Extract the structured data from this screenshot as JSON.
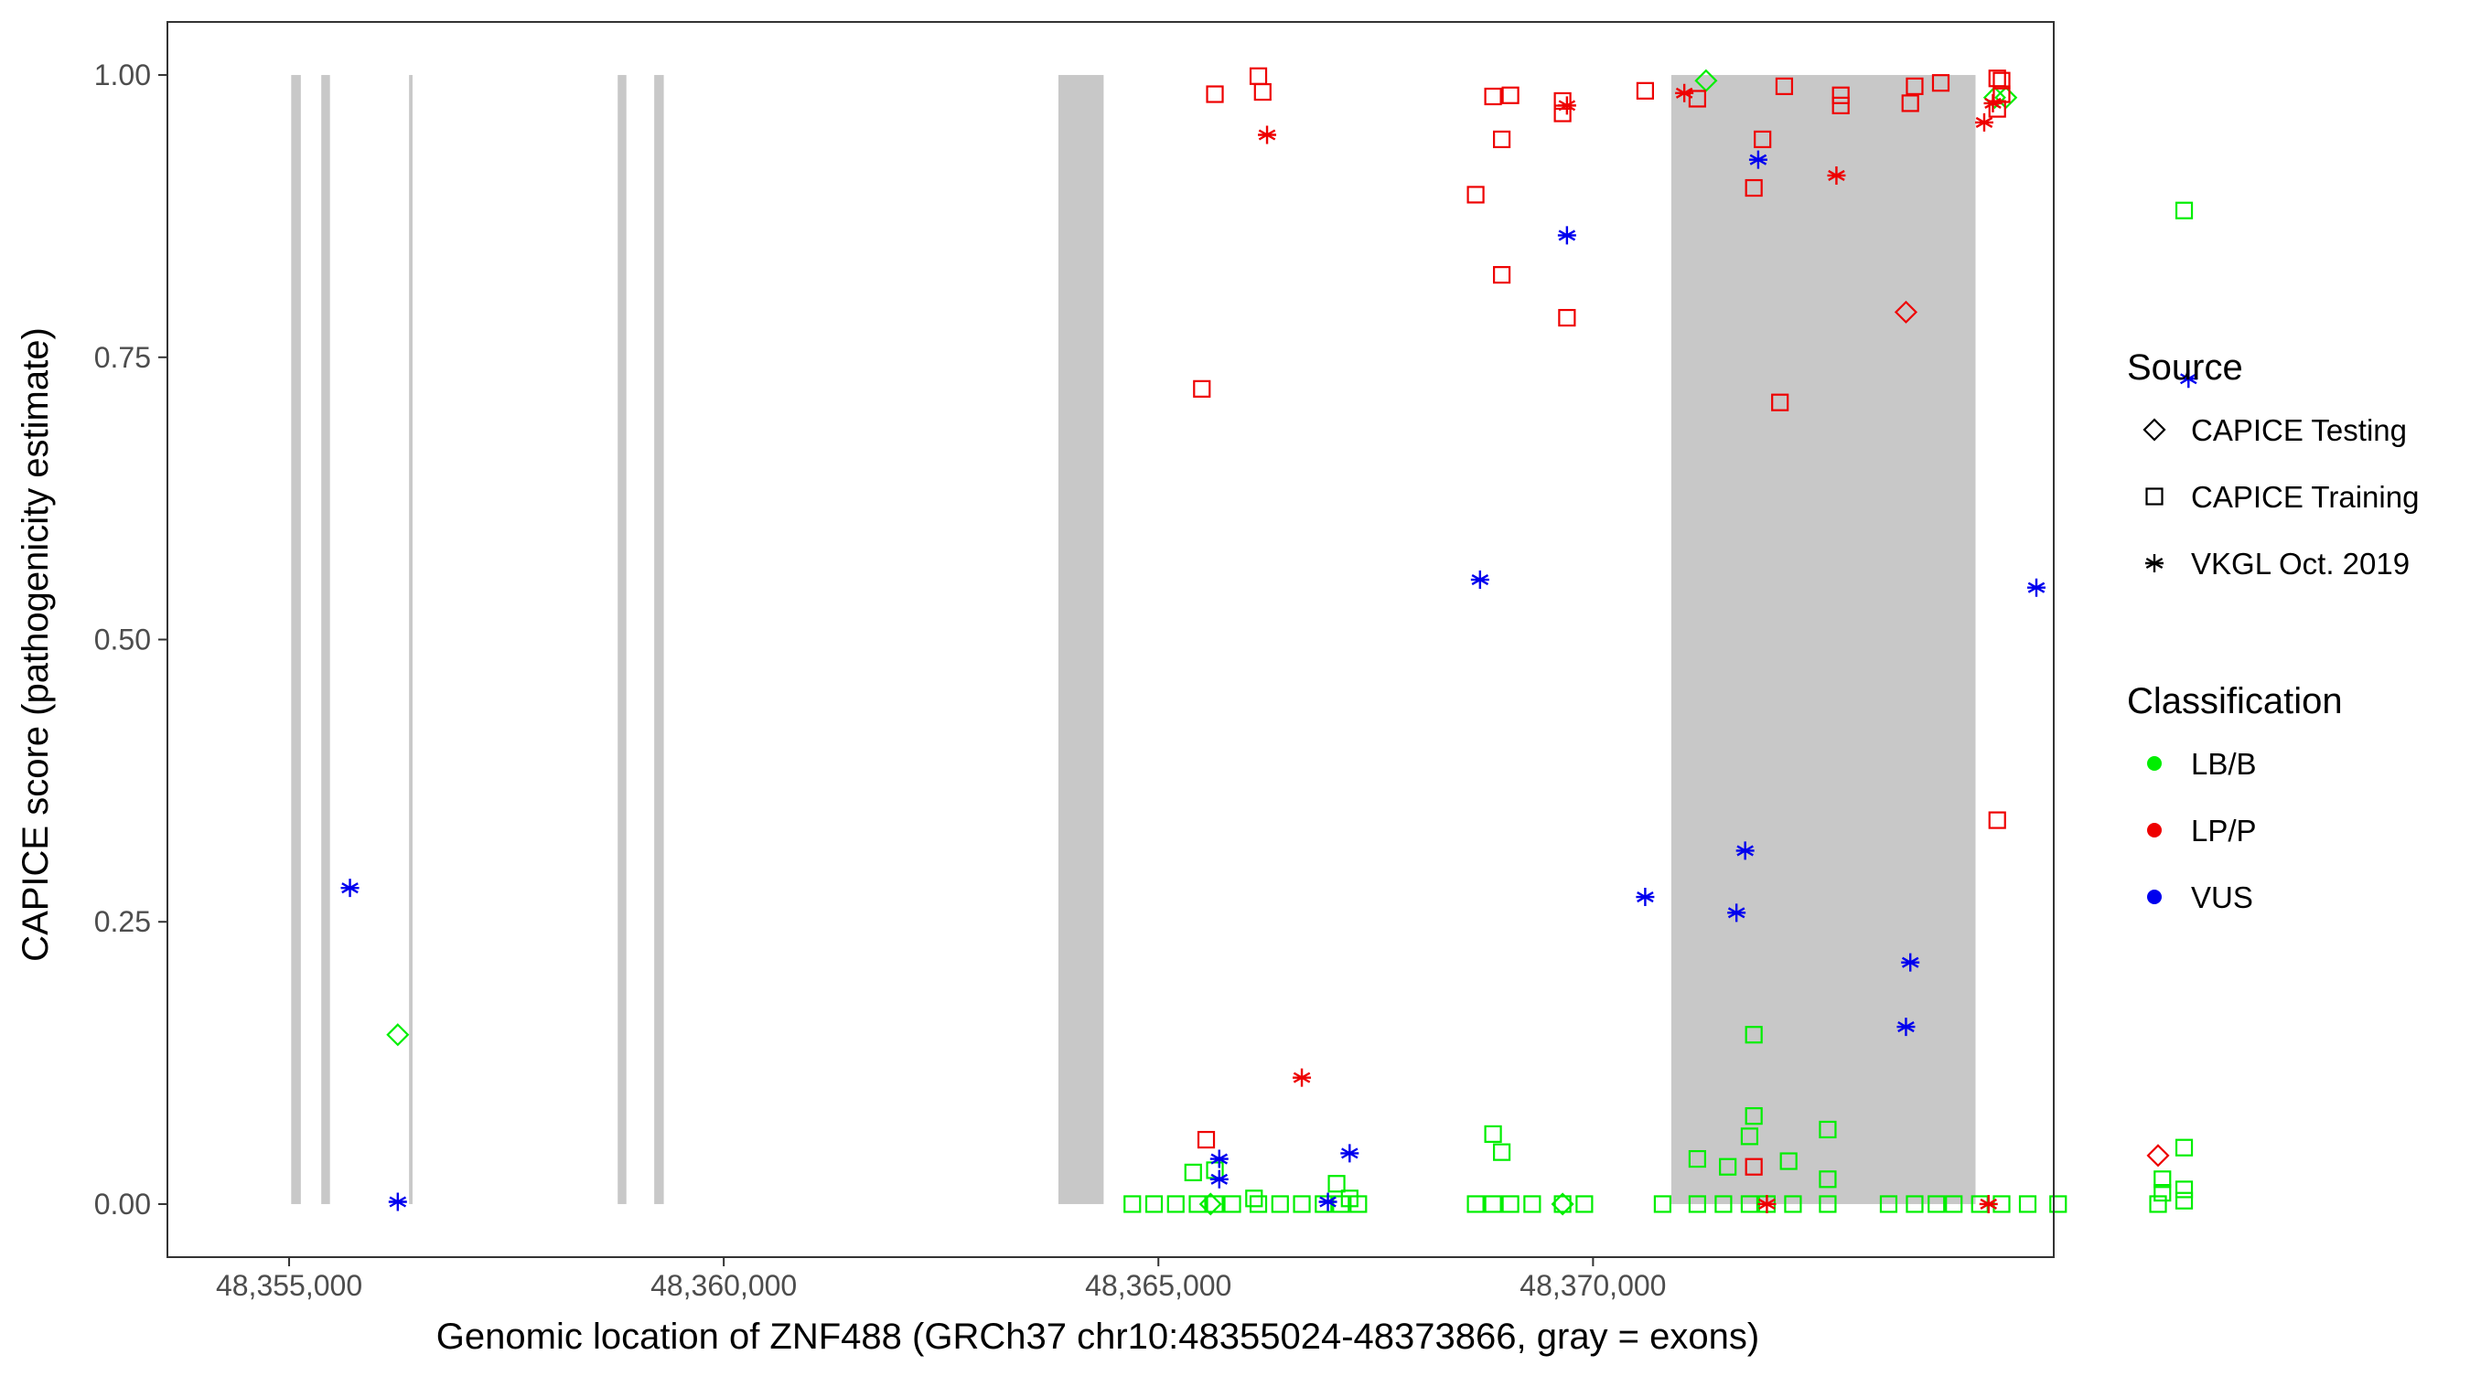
{
  "chart_data": {
    "type": "scatter",
    "xlabel": "Genomic location of ZNF488 (GRCh37 chr10:48355024-48373866, gray = exons)",
    "ylabel": "CAPICE score (pathogenicity estimate)",
    "xlim": [
      48353600,
      48375300
    ],
    "ylim": [
      -0.047,
      1.047
    ],
    "x_ticks": [
      48355000,
      48360000,
      48365000,
      48370000
    ],
    "x_tick_labels": [
      "48,355,000",
      "48,360,000",
      "48,365,000",
      "48,370,000"
    ],
    "y_ticks": [
      0,
      0.25,
      0.5,
      0.75,
      1.0
    ],
    "y_tick_labels": [
      "0.00",
      "0.25",
      "0.50",
      "0.75",
      "1.00"
    ],
    "grid": false,
    "exons": [
      [
        48355024,
        48355135
      ],
      [
        48355370,
        48355470
      ],
      [
        48356380,
        48356420
      ],
      [
        48358780,
        48358880
      ],
      [
        48359200,
        48359310
      ],
      [
        48363850,
        48364370
      ],
      [
        48370900,
        48374400
      ]
    ],
    "exon_color": "#C8C8C8",
    "legend": {
      "position": "right",
      "source_title": "Source",
      "source_items": [
        {
          "label": "CAPICE Testing",
          "shape": "diamond"
        },
        {
          "label": "CAPICE Training",
          "shape": "square"
        },
        {
          "label": "VKGL Oct. 2019",
          "shape": "asterisk"
        }
      ],
      "class_title": "Classification",
      "class_items": [
        {
          "label": "LB/B",
          "color": "#00EE00"
        },
        {
          "label": "LP/P",
          "color": "#EE0000"
        },
        {
          "label": "VUS",
          "color": "#0000EE"
        }
      ]
    },
    "series": [
      {
        "source": "CAPICE Testing",
        "class": "LB/B",
        "points": [
          [
            48356250,
            0.15
          ],
          [
            48371300,
            0.995
          ],
          [
            48374750,
            0.98
          ],
          [
            48369650,
            0.0
          ],
          [
            48374620,
            0.98
          ],
          [
            48365600,
            0.0
          ]
        ]
      },
      {
        "source": "CAPICE Testing",
        "class": "LP/P",
        "points": [
          [
            48373600,
            0.79
          ],
          [
            48376500,
            0.043
          ]
        ]
      },
      {
        "source": "CAPICE Training",
        "class": "LP/P",
        "points": [
          [
            48366150,
            0.999
          ],
          [
            48366200,
            0.985
          ],
          [
            48365650,
            0.983
          ],
          [
            48368850,
            0.981
          ],
          [
            48369050,
            0.982
          ],
          [
            48369650,
            0.977
          ],
          [
            48369650,
            0.966
          ],
          [
            48370600,
            0.986
          ],
          [
            48371200,
            0.979
          ],
          [
            48372200,
            0.99
          ],
          [
            48372850,
            0.982
          ],
          [
            48372850,
            0.973
          ],
          [
            48373650,
            0.975
          ],
          [
            48373700,
            0.99
          ],
          [
            48374000,
            0.993
          ],
          [
            48374650,
            0.997
          ],
          [
            48374700,
            0.995
          ],
          [
            48374700,
            0.983
          ],
          [
            48374650,
            0.97
          ],
          [
            48368950,
            0.943
          ],
          [
            48371950,
            0.943
          ],
          [
            48368650,
            0.894
          ],
          [
            48371850,
            0.9
          ],
          [
            48368950,
            0.823
          ],
          [
            48369700,
            0.785
          ],
          [
            48365500,
            0.722
          ],
          [
            48372150,
            0.71
          ],
          [
            48374650,
            0.34
          ],
          [
            48365550,
            0.057
          ],
          [
            48371850,
            0.033
          ]
        ]
      },
      {
        "source": "CAPICE Training",
        "class": "LB/B",
        "points": [
          [
            48376800,
            0.88
          ],
          [
            48371850,
            0.15
          ],
          [
            48371850,
            0.078
          ],
          [
            48372700,
            0.066
          ],
          [
            48368850,
            0.062
          ],
          [
            48371800,
            0.06
          ],
          [
            48368950,
            0.046
          ],
          [
            48376800,
            0.05
          ],
          [
            48371200,
            0.04
          ],
          [
            48372250,
            0.038
          ],
          [
            48371550,
            0.033
          ],
          [
            48365400,
            0.028
          ],
          [
            48367050,
            0.018
          ],
          [
            48365650,
            0.03
          ],
          [
            48376550,
            0.022
          ],
          [
            48372700,
            0.022
          ],
          [
            48376800,
            0.013
          ],
          [
            48376550,
            0.01
          ],
          [
            48367200,
            0.005
          ],
          [
            48366100,
            0.005
          ],
          [
            48364700,
            0.0
          ],
          [
            48364950,
            0.0
          ],
          [
            48365200,
            0.0
          ],
          [
            48365450,
            0.0
          ],
          [
            48365650,
            0.0
          ],
          [
            48365850,
            0.0
          ],
          [
            48366150,
            0.0
          ],
          [
            48366400,
            0.0
          ],
          [
            48366650,
            0.0
          ],
          [
            48366900,
            0.0
          ],
          [
            48367100,
            0.0
          ],
          [
            48367300,
            0.0
          ],
          [
            48368650,
            0.0
          ],
          [
            48368850,
            0.0
          ],
          [
            48369050,
            0.0
          ],
          [
            48369300,
            0.0
          ],
          [
            48369650,
            0.0
          ],
          [
            48369900,
            0.0
          ],
          [
            48370800,
            0.0
          ],
          [
            48371200,
            0.0
          ],
          [
            48371500,
            0.0
          ],
          [
            48371800,
            0.0
          ],
          [
            48372000,
            0.0
          ],
          [
            48372300,
            0.0
          ],
          [
            48372700,
            0.0
          ],
          [
            48373400,
            0.0
          ],
          [
            48373700,
            0.0
          ],
          [
            48373950,
            0.0
          ],
          [
            48374150,
            0.0
          ],
          [
            48374450,
            0.0
          ],
          [
            48374700,
            0.0
          ],
          [
            48375000,
            0.0
          ],
          [
            48375350,
            0.0
          ],
          [
            48376500,
            0.0
          ],
          [
            48376800,
            0.003
          ]
        ]
      },
      {
        "source": "VKGL Oct. 2019",
        "class": "VUS",
        "points": [
          [
            48355700,
            0.28
          ],
          [
            48356250,
            0.002
          ],
          [
            48365700,
            0.04
          ],
          [
            48365700,
            0.022
          ],
          [
            48367200,
            0.045
          ],
          [
            48366950,
            0.002
          ],
          [
            48368700,
            0.553
          ],
          [
            48369700,
            0.858
          ],
          [
            48370600,
            0.272
          ],
          [
            48371750,
            0.313
          ],
          [
            48371650,
            0.258
          ],
          [
            48371900,
            0.925
          ],
          [
            48373650,
            0.214
          ],
          [
            48373600,
            0.157
          ],
          [
            48375100,
            0.546
          ],
          [
            48376850,
            0.731
          ]
        ]
      },
      {
        "source": "VKGL Oct. 2019",
        "class": "LP/P",
        "points": [
          [
            48366250,
            0.947
          ],
          [
            48369700,
            0.973
          ],
          [
            48371050,
            0.984
          ],
          [
            48372800,
            0.911
          ],
          [
            48374500,
            0.958
          ],
          [
            48374600,
            0.975
          ],
          [
            48366650,
            0.112
          ],
          [
            48372000,
            0.0
          ],
          [
            48374550,
            0.0
          ]
        ]
      }
    ]
  }
}
